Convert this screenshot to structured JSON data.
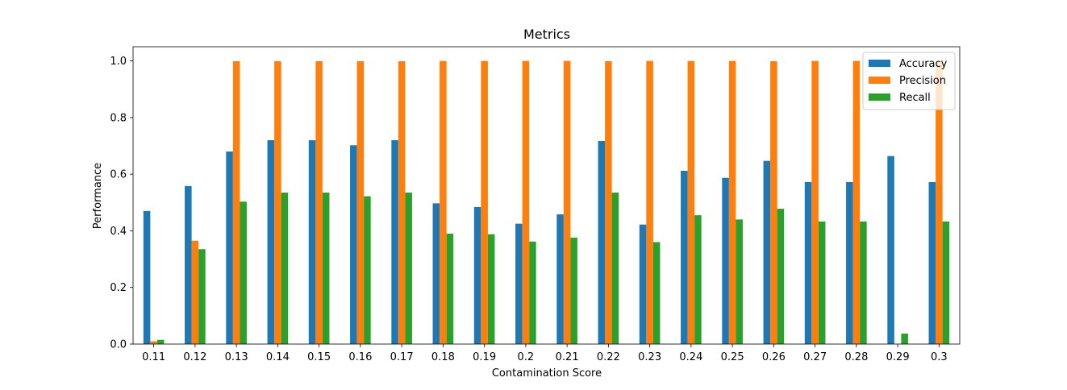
{
  "chart_data": {
    "type": "bar",
    "title": "Metrics",
    "xlabel": "Contamination Score",
    "ylabel": "Performance",
    "ylim": [
      0,
      1.05
    ],
    "yticks": [
      "0.0",
      "0.2",
      "0.4",
      "0.6",
      "0.8",
      "1.0"
    ],
    "grid": false,
    "legend_position": "top-right",
    "categories": [
      "0.11",
      "0.12",
      "0.13",
      "0.14",
      "0.15",
      "0.16",
      "0.17",
      "0.18",
      "0.19",
      "0.2",
      "0.21",
      "0.22",
      "0.23",
      "0.24",
      "0.25",
      "0.26",
      "0.27",
      "0.28",
      "0.29",
      "0.3"
    ],
    "series": [
      {
        "name": "Accuracy",
        "color": "#1f77b4",
        "values": [
          0.47,
          0.558,
          0.68,
          0.72,
          0.72,
          0.702,
          0.72,
          0.497,
          0.484,
          0.425,
          0.458,
          0.717,
          0.422,
          0.612,
          0.587,
          0.647,
          0.572,
          0.572,
          0.664,
          0.572
        ]
      },
      {
        "name": "Precision",
        "color": "#ff7f0e",
        "values": [
          0.01,
          0.365,
          0.999,
          0.999,
          0.999,
          0.999,
          0.999,
          1.0,
          1.0,
          1.0,
          1.0,
          0.999,
          1.0,
          1.0,
          1.0,
          0.999,
          1.0,
          1.0,
          0.0,
          1.0
        ]
      },
      {
        "name": "Recall",
        "color": "#2ca02c",
        "values": [
          0.015,
          0.335,
          0.503,
          0.535,
          0.535,
          0.522,
          0.535,
          0.39,
          0.388,
          0.362,
          0.376,
          0.535,
          0.36,
          0.455,
          0.44,
          0.478,
          0.433,
          0.433,
          0.037,
          0.433
        ]
      }
    ]
  }
}
